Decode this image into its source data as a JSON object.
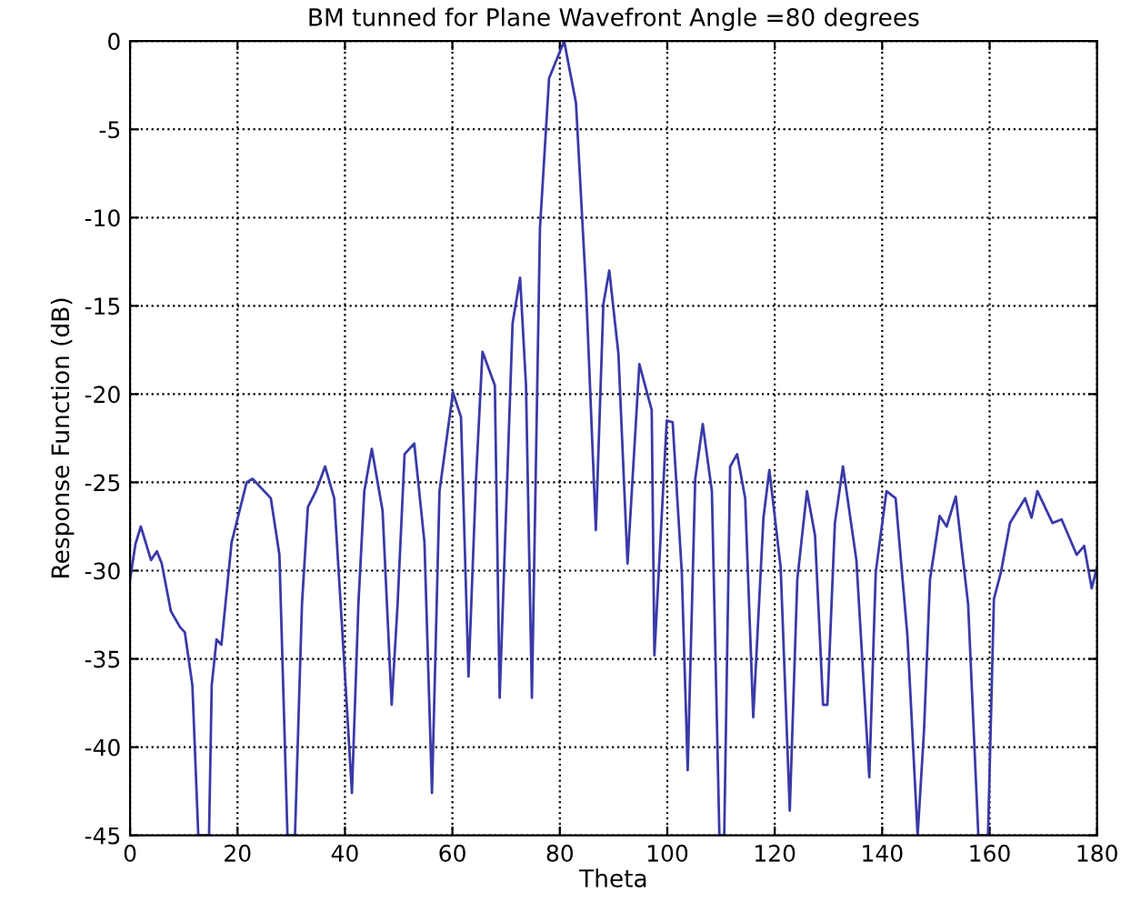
{
  "chart_data": {
    "type": "line",
    "title": "BM tunned for Plane Wavefront Angle =80 degrees",
    "xlabel": "Theta",
    "ylabel": "Response Function (dB)",
    "xlim": [
      0,
      180
    ],
    "ylim": [
      -45,
      0
    ],
    "xticks": [
      0,
      20,
      40,
      60,
      80,
      100,
      120,
      140,
      160,
      180
    ],
    "yticks": [
      -45,
      -40,
      -35,
      -30,
      -25,
      -20,
      -15,
      -10,
      -5,
      0
    ],
    "grid": true,
    "line_style": "solid",
    "marker": "none",
    "x": [
      0,
      1,
      2,
      3.9,
      5.0,
      5.9,
      7.6,
      9.3,
      10.2,
      11.6,
      12.7,
      14.7,
      15.2,
      16.1,
      17.0,
      18.9,
      21.7,
      22.8,
      26.2,
      27.8,
      29.3,
      30.7,
      32.0,
      33.1,
      34.6,
      36.3,
      38.0,
      40.2,
      41.3,
      42.5,
      43.6,
      45.0,
      47.0,
      48.7,
      49.8,
      51.1,
      52.9,
      54.8,
      56.2,
      57.6,
      60.1,
      61.6,
      63.0,
      64.4,
      65.6,
      67.9,
      68.8,
      71.2,
      72.6,
      73.7,
      74.8,
      76.3,
      78.0,
      80.8,
      83.0,
      84.9,
      86.7,
      88.1,
      89.2,
      90.9,
      92.6,
      94.8,
      97.1,
      97.6,
      99.9,
      101.0,
      102.7,
      103.8,
      105.2,
      106.6,
      108.3,
      109.7,
      110.6,
      111.7,
      113.0,
      114.5,
      116.0,
      117.9,
      119.0,
      121.1,
      122.8,
      124.2,
      126.0,
      127.5,
      129.0,
      129.8,
      131.2,
      132.7,
      135.2,
      137.6,
      138.8,
      140.8,
      142.5,
      144.7,
      146.6,
      147.8,
      148.9,
      150.7,
      152.0,
      153.7,
      156.0,
      157.9,
      159.7,
      160.8,
      162.1,
      163.8,
      166.6,
      167.8,
      168.9,
      171.7,
      173.4,
      176.2,
      177.6,
      179.0,
      180.0
    ],
    "series": [
      {
        "color": "#3a3aa8",
        "values": [
          -30.5,
          -28.5,
          -27.5,
          -29.4,
          -28.9,
          -29.6,
          -32.3,
          -33.2,
          -33.5,
          -36.5,
          -45,
          -45,
          -36.5,
          -33.9,
          -34.2,
          -28.4,
          -25.0,
          -24.8,
          -25.9,
          -29.1,
          -45,
          -45,
          -31.9,
          -26.4,
          -25.5,
          -24.1,
          -25.9,
          -36.9,
          -42.6,
          -31.9,
          -25.5,
          -23.1,
          -26.6,
          -37.6,
          -31.9,
          -23.4,
          -22.8,
          -28.4,
          -42.6,
          -25.5,
          -19.9,
          -21.3,
          -36.0,
          -24.8,
          -17.6,
          -19.5,
          -37.2,
          -16.0,
          -13.4,
          -19.5,
          -37.2,
          -10.6,
          -2.1,
          0,
          -3.5,
          -14.2,
          -27.7,
          -14.9,
          -13.0,
          -17.7,
          -29.6,
          -18.3,
          -20.9,
          -34.8,
          -21.5,
          -21.6,
          -30.1,
          -41.3,
          -24.8,
          -21.7,
          -25.5,
          -45,
          -45,
          -24.1,
          -23.4,
          -25.9,
          -38.3,
          -27.0,
          -24.3,
          -29.8,
          -43.6,
          -30.5,
          -25.5,
          -28.0,
          -37.6,
          -37.6,
          -27.3,
          -24.1,
          -29.4,
          -41.7,
          -30.1,
          -25.5,
          -25.9,
          -33.7,
          -45,
          -39.0,
          -30.5,
          -26.9,
          -27.5,
          -25.8,
          -31.9,
          -45,
          -45,
          -31.6,
          -30.1,
          -27.3,
          -25.9,
          -27.0,
          -25.5,
          -27.3,
          -27.1,
          -29.1,
          -28.6,
          -31.0,
          -29.8
        ]
      }
    ]
  }
}
